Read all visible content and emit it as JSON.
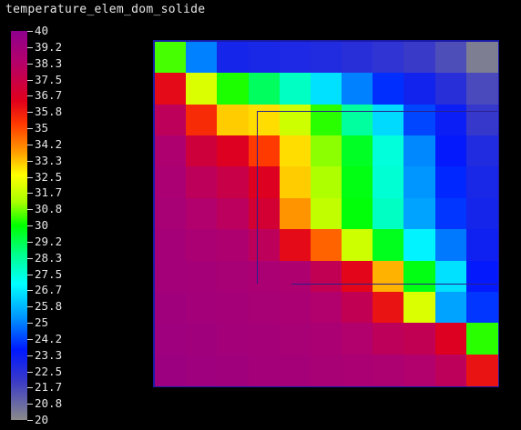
{
  "window": {
    "title": "temperature_elem_dom_solide"
  },
  "colormap": {
    "min": 20,
    "max": 40,
    "tick_labels": [
      "40",
      "39.2",
      "38.3",
      "37.5",
      "36.7",
      "35.8",
      "35",
      "34.2",
      "33.3",
      "32.5",
      "31.7",
      "30.8",
      "30",
      "29.2",
      "28.3",
      "27.5",
      "26.7",
      "25.8",
      "25",
      "24.2",
      "23.3",
      "22.5",
      "21.7",
      "20.8",
      "20"
    ]
  },
  "chart_data": {
    "type": "heatmap",
    "title": "temperature_elem_dom_solide",
    "xlabel": "",
    "ylabel": "",
    "value_range": [
      20,
      40
    ],
    "rows": 11,
    "cols": 11,
    "values": [
      [
        30.5,
        25.0,
        23.0,
        22.9,
        22.8,
        22.7,
        22.5,
        22.3,
        22.0,
        21.5,
        20.3
      ],
      [
        36.2,
        32.0,
        30.2,
        29.0,
        27.8,
        26.5,
        25.0,
        23.9,
        23.1,
        22.5,
        21.6
      ],
      [
        38.0,
        35.5,
        33.2,
        33.0,
        31.8,
        30.3,
        28.3,
        26.4,
        24.2,
        23.3,
        22.1
      ],
      [
        38.6,
        37.2,
        36.5,
        35.2,
        33.0,
        31.0,
        29.6,
        27.5,
        25.1,
        23.5,
        22.7
      ],
      [
        38.8,
        38.0,
        37.5,
        36.5,
        33.2,
        31.3,
        29.8,
        27.6,
        25.3,
        23.8,
        22.9
      ],
      [
        38.9,
        38.5,
        38.1,
        37.0,
        33.9,
        31.6,
        29.9,
        27.8,
        25.5,
        24.0,
        23.0
      ],
      [
        39.0,
        38.8,
        38.6,
        38.0,
        36.2,
        34.6,
        31.8,
        29.7,
        26.8,
        24.9,
        23.2
      ],
      [
        39.1,
        39.0,
        38.9,
        38.8,
        38.6,
        37.8,
        36.3,
        33.5,
        29.8,
        26.5,
        23.5
      ],
      [
        39.2,
        39.1,
        39.0,
        38.9,
        38.8,
        38.5,
        37.8,
        36.0,
        32.0,
        25.5,
        24.0
      ],
      [
        39.3,
        39.2,
        39.1,
        39.0,
        38.9,
        38.8,
        38.5,
        38.0,
        37.8,
        36.5,
        30.3
      ],
      [
        39.4,
        39.3,
        39.2,
        39.1,
        39.0,
        38.9,
        38.8,
        38.7,
        38.5,
        38.0,
        36.0
      ]
    ]
  }
}
